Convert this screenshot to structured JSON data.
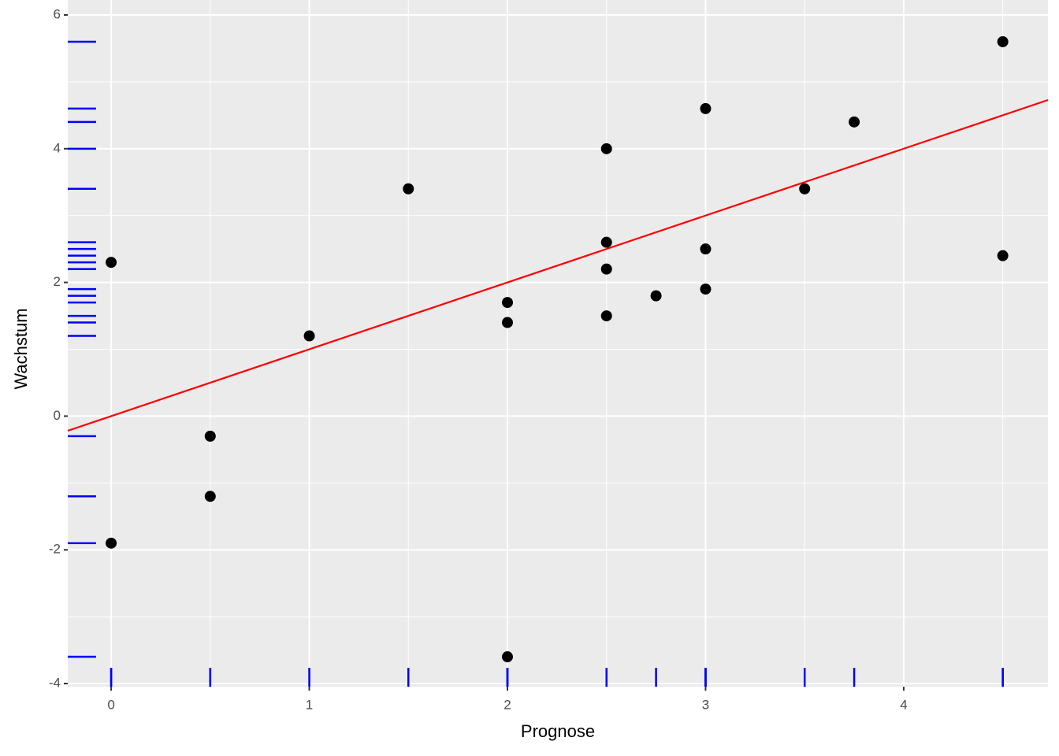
{
  "chart_data": {
    "type": "scatter",
    "x_label": "Prognose",
    "y_label": "Wachstum",
    "series": [
      {
        "color": "#000000",
        "x": [
          0,
          0,
          0.5,
          0.5,
          1,
          1.5,
          2,
          2,
          2,
          2.5,
          2.5,
          2.5,
          2.5,
          2.75,
          3,
          3,
          3,
          3.5,
          3.75,
          4.5,
          4.5
        ],
        "values": [
          2.3,
          -1.9,
          -0.3,
          -1.2,
          1.2,
          3.4,
          1.7,
          1.4,
          -3.6,
          4.0,
          2.6,
          2.2,
          1.5,
          1.8,
          4.6,
          2.5,
          1.9,
          3.4,
          4.4,
          5.6,
          2.4
        ]
      }
    ],
    "rug_color": "#0000ff",
    "line": {
      "intercept": 0,
      "slope": 1,
      "color": "#ff0000"
    },
    "xlim": [
      -0.219,
      4.728
    ],
    "ylim": [
      -4.047,
      6.224
    ],
    "xticks": [
      0,
      1,
      2,
      3,
      4
    ],
    "yticks": [
      -4,
      -2,
      0,
      2,
      4,
      6
    ],
    "xminor": [
      0.5,
      1.5,
      2.5,
      3.5,
      4.5
    ],
    "yminor": [
      -3,
      -1,
      1,
      3,
      5
    ],
    "grid": true
  }
}
